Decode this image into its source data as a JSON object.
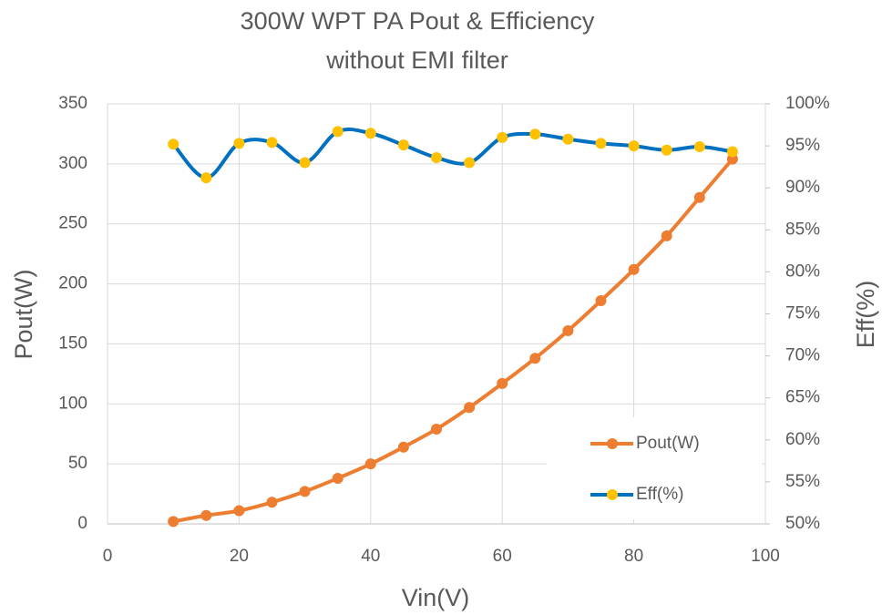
{
  "chart_data": {
    "type": "line",
    "title_lines": [
      "300W WPT PA Pout & Efficiency",
      "without EMI filter"
    ],
    "x_label": "Vin(V)",
    "y_label": "Pout(W)",
    "y2_label": "Eff(%)",
    "x": [
      10,
      15,
      20,
      25,
      30,
      35,
      40,
      45,
      50,
      55,
      60,
      65,
      70,
      75,
      80,
      85,
      90,
      95
    ],
    "series": [
      {
        "name": "Pout(W)",
        "color": "#ed7d31",
        "marker_color": "#ed7d31",
        "values": [
          2,
          7,
          11,
          18,
          27,
          38,
          50,
          64,
          79,
          97,
          117,
          138,
          161,
          186,
          212,
          240,
          272,
          304
        ]
      },
      {
        "name": "Eff(%)",
        "color": "#0070c0",
        "marker_color": "#ffc000",
        "axis": "y2",
        "values": [
          95.2,
          91.2,
          95.3,
          95.4,
          93.0,
          96.7,
          96.5,
          95.1,
          93.6,
          93.0,
          96.0,
          96.4,
          95.8,
          95.3,
          95.0,
          94.5,
          94.9,
          94.3
        ]
      }
    ],
    "xlim": [
      0,
      100
    ],
    "xticks": [
      0,
      20,
      40,
      60,
      80,
      100
    ],
    "ylim": [
      0,
      350
    ],
    "yticks": [
      0,
      50,
      100,
      150,
      200,
      250,
      300,
      350
    ],
    "y2lim": [
      50,
      100
    ],
    "y2ticks": [
      {
        "value": 50,
        "label": "50%"
      },
      {
        "value": 55,
        "label": "55%"
      },
      {
        "value": 60,
        "label": "60%"
      },
      {
        "value": 65,
        "label": "65%"
      },
      {
        "value": 70,
        "label": "70%"
      },
      {
        "value": 75,
        "label": "75%"
      },
      {
        "value": 80,
        "label": "80%"
      },
      {
        "value": 85,
        "label": "85%"
      },
      {
        "value": 90,
        "label": "90%"
      },
      {
        "value": 95,
        "label": "95%"
      },
      {
        "value": 100,
        "label": "100%"
      }
    ],
    "smooth": true,
    "grid": true,
    "legend": "lower right"
  }
}
